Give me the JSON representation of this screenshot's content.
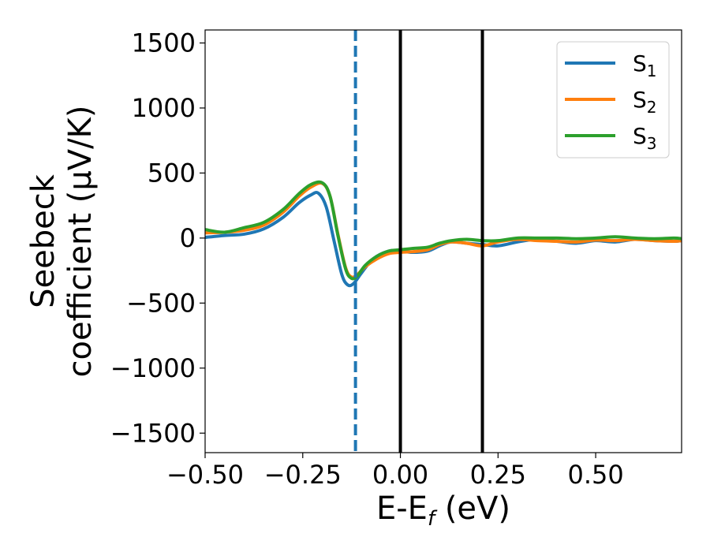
{
  "chart_data": {
    "type": "line",
    "title": "",
    "xlabel": "E-E",
    "xlabel_sub": "f",
    "xlabel_unit": " (eV)",
    "ylabel_line1": "Seebeck",
    "ylabel_line2": "coefficient  (μV/K)",
    "xlim": [
      -0.5,
      0.72
    ],
    "ylim": [
      -1650,
      1600
    ],
    "xticks": [
      -0.5,
      -0.25,
      0.0,
      0.25,
      0.5
    ],
    "xtick_labels": [
      "−0.50",
      "−0.25",
      "0.00",
      "0.25",
      "0.50"
    ],
    "yticks": [
      -1500,
      -1000,
      -500,
      0,
      500,
      1000,
      1500
    ],
    "ytick_labels": [
      "−1500",
      "−1000",
      "−500",
      "0",
      "500",
      "1000",
      "1500"
    ],
    "grid": false,
    "legend_position": "top-right",
    "vlines": [
      {
        "x": -0.115,
        "color": "#1f77b4",
        "style": "dashed"
      },
      {
        "x": 0.0,
        "color": "#000000",
        "style": "solid"
      },
      {
        "x": 0.21,
        "color": "#000000",
        "style": "solid"
      }
    ],
    "series": [
      {
        "name": "S",
        "name_sub": "1",
        "color": "#1f77b4",
        "x": [
          -0.5,
          -0.45,
          -0.4,
          -0.35,
          -0.3,
          -0.26,
          -0.23,
          -0.21,
          -0.19,
          -0.17,
          -0.15,
          -0.135,
          -0.12,
          -0.1,
          -0.07,
          -0.03,
          0.0,
          0.03,
          0.07,
          0.1,
          0.13,
          0.17,
          0.21,
          0.25,
          0.3,
          0.35,
          0.4,
          0.45,
          0.5,
          0.55,
          0.6,
          0.65,
          0.7,
          0.72
        ],
        "y": [
          5,
          20,
          30,
          70,
          160,
          270,
          330,
          345,
          240,
          -20,
          -280,
          -360,
          -350,
          -270,
          -160,
          -100,
          -100,
          -110,
          -100,
          -60,
          -30,
          -40,
          -50,
          -60,
          -30,
          -10,
          -25,
          -40,
          -20,
          -30,
          -10,
          -20,
          -25,
          -20
        ]
      },
      {
        "name": "S",
        "name_sub": "2",
        "color": "#ff7f0e",
        "x": [
          -0.5,
          -0.45,
          -0.4,
          -0.35,
          -0.3,
          -0.26,
          -0.23,
          -0.2,
          -0.18,
          -0.16,
          -0.14,
          -0.125,
          -0.11,
          -0.09,
          -0.06,
          -0.03,
          0.0,
          0.03,
          0.07,
          0.1,
          0.13,
          0.17,
          0.21,
          0.25,
          0.3,
          0.35,
          0.4,
          0.45,
          0.5,
          0.55,
          0.6,
          0.65,
          0.7,
          0.72
        ],
        "y": [
          40,
          45,
          60,
          100,
          200,
          320,
          390,
          420,
          320,
          30,
          -230,
          -300,
          -280,
          -220,
          -160,
          -120,
          -110,
          -105,
          -90,
          -50,
          -30,
          -40,
          -60,
          -30,
          -10,
          -20,
          -25,
          -30,
          -15,
          -20,
          -10,
          -20,
          -25,
          -20
        ]
      },
      {
        "name": "S",
        "name_sub": "3",
        "color": "#2ca02c",
        "x": [
          -0.5,
          -0.45,
          -0.4,
          -0.35,
          -0.3,
          -0.26,
          -0.23,
          -0.2,
          -0.18,
          -0.16,
          -0.14,
          -0.125,
          -0.11,
          -0.09,
          -0.06,
          -0.03,
          0.0,
          0.03,
          0.07,
          0.1,
          0.13,
          0.17,
          0.21,
          0.25,
          0.3,
          0.35,
          0.4,
          0.45,
          0.5,
          0.55,
          0.6,
          0.65,
          0.7,
          0.72
        ],
        "y": [
          65,
          45,
          80,
          120,
          220,
          340,
          410,
          425,
          320,
          20,
          -240,
          -310,
          -290,
          -210,
          -140,
          -100,
          -90,
          -80,
          -70,
          -40,
          -20,
          -10,
          -20,
          -20,
          0,
          0,
          0,
          -5,
          0,
          10,
          0,
          -5,
          0,
          -5
        ]
      }
    ]
  }
}
